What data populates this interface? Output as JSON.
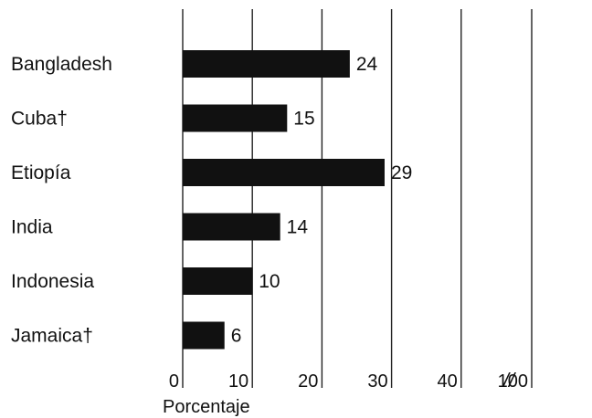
{
  "chart_data": {
    "type": "bar",
    "orientation": "horizontal",
    "categories": [
      "Bangladesh",
      "Cuba†",
      "Etiopía",
      "India",
      "Indonesia",
      "Jamaica†"
    ],
    "values": [
      24,
      15,
      29,
      14,
      10,
      6
    ],
    "xlabel": "Porcentaje",
    "x_ticks": [
      "0",
      "10",
      "20",
      "30",
      "40",
      "100"
    ],
    "axis_break": "//",
    "xlim": [
      0,
      100
    ],
    "grid": true,
    "bar_color": "#111111"
  }
}
